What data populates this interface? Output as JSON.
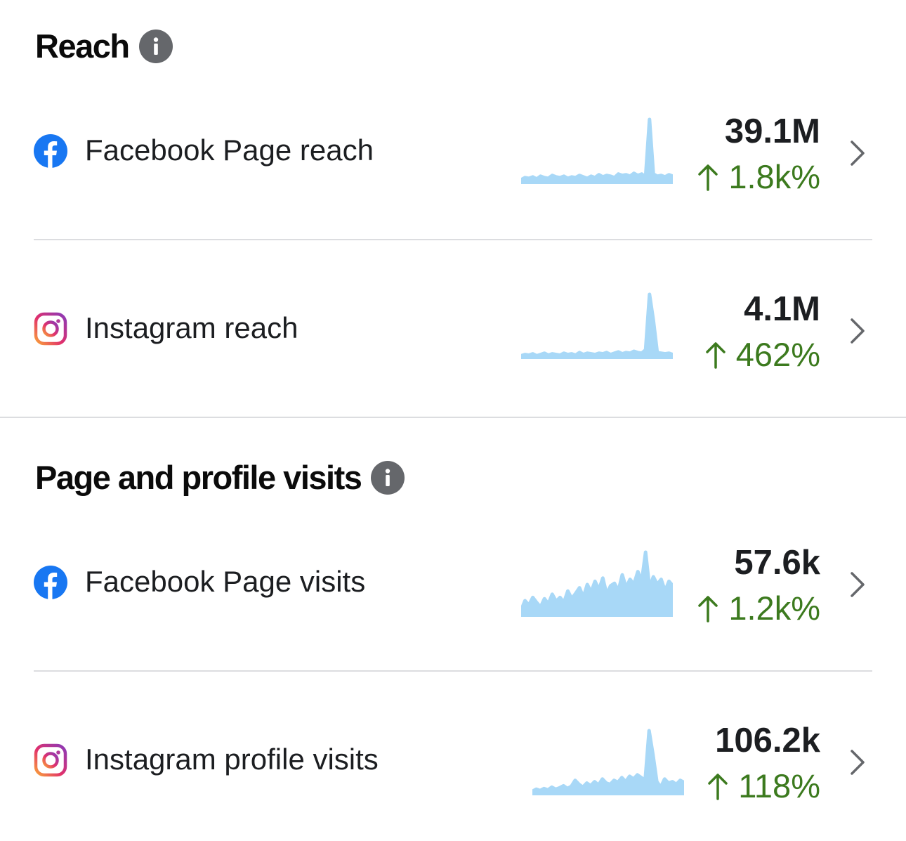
{
  "sections": [
    {
      "title": "Reach",
      "rows": [
        {
          "platform": "facebook",
          "label": "Facebook Page reach",
          "value": "39.1M",
          "change": "1.8k%",
          "trend": "up",
          "spark": [
            6,
            9,
            8,
            10,
            7,
            11,
            9,
            8,
            12,
            10,
            9,
            11,
            8,
            10,
            9,
            12,
            10,
            8,
            11,
            9,
            13,
            10,
            12,
            11,
            9,
            14,
            12,
            13,
            11,
            15,
            12,
            14,
            10,
            90,
            14,
            11,
            12,
            10,
            13,
            11
          ]
        },
        {
          "platform": "instagram",
          "label": "Instagram reach",
          "value": "4.1M",
          "change": "462%",
          "trend": "up",
          "spark": [
            5,
            7,
            6,
            8,
            5,
            7,
            9,
            6,
            8,
            7,
            6,
            9,
            7,
            8,
            6,
            10,
            7,
            9,
            8,
            7,
            9,
            8,
            10,
            7,
            9,
            11,
            8,
            10,
            9,
            12,
            10,
            9,
            14,
            100,
            60,
            10,
            9,
            8,
            9,
            7
          ]
        }
      ]
    },
    {
      "title": "Page and profile visits",
      "rows": [
        {
          "platform": "facebook",
          "label": "Facebook Page visits",
          "value": "57.6k",
          "change": "1.2k%",
          "trend": "up",
          "spark": [
            10,
            25,
            18,
            30,
            22,
            15,
            28,
            20,
            35,
            24,
            30,
            22,
            40,
            28,
            36,
            45,
            30,
            50,
            38,
            55,
            42,
            60,
            35,
            48,
            52,
            40,
            65,
            45,
            58,
            50,
            70,
            55,
            100,
            45,
            62,
            50,
            58,
            40,
            55,
            48
          ]
        },
        {
          "platform": "instagram",
          "label": "Instagram profile visits",
          "value": "106.2k",
          "change": "118%",
          "trend": "up",
          "spark": [
            6,
            9,
            7,
            10,
            8,
            12,
            9,
            11,
            14,
            10,
            13,
            22,
            16,
            12,
            18,
            14,
            20,
            15,
            24,
            18,
            16,
            22,
            19,
            26,
            20,
            28,
            24,
            30,
            26,
            22,
            95,
            60,
            20,
            12,
            24,
            18,
            20,
            16,
            22,
            19
          ]
        }
      ]
    }
  ],
  "colors": {
    "spark": "#a8d8f7",
    "positive": "#3c7a1e",
    "info": "#65676b",
    "facebook": "#1877f2"
  },
  "icons": {
    "info": "info-icon",
    "facebook": "facebook-icon",
    "instagram": "instagram-icon",
    "chevron": "chevron-right-icon",
    "arrow": "arrow-up-icon"
  }
}
